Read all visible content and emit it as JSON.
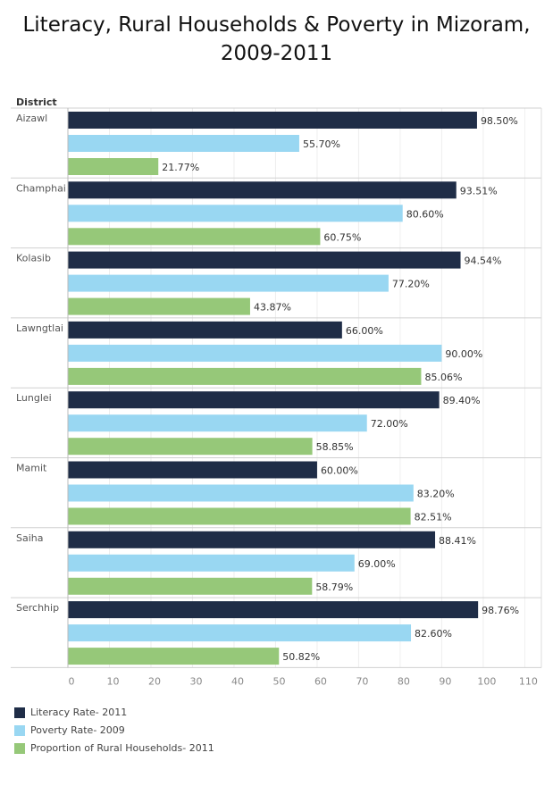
{
  "chart_data": {
    "type": "bar",
    "orientation": "horizontal",
    "title": "Literacy, Rural Households & Poverty in Mizoram, 2009-2011",
    "row_header": "District",
    "categories": [
      "Aizawl",
      "Champhai",
      "Kolasib",
      "Lawngtlai",
      "Lunglei",
      "Mamit",
      "Saiha",
      "Serchhip"
    ],
    "series": [
      {
        "name": "Literacy Rate- 2011",
        "color": "#1f2d47",
        "values": [
          98.5,
          93.51,
          94.54,
          66.0,
          89.4,
          60.0,
          88.41,
          98.76
        ],
        "labels": [
          "98.50%",
          "93.51%",
          "94.54%",
          "66.00%",
          "89.40%",
          "60.00%",
          "88.41%",
          "98.76%"
        ]
      },
      {
        "name": "Poverty Rate- 2009",
        "color": "#99d7f2",
        "values": [
          55.7,
          80.6,
          77.2,
          90.0,
          72.0,
          83.2,
          69.0,
          82.6
        ],
        "labels": [
          "55.70%",
          "80.60%",
          "77.20%",
          "90.00%",
          "72.00%",
          "83.20%",
          "69.00%",
          "82.60%"
        ]
      },
      {
        "name": "Proportion of Rural Households- 2011",
        "color": "#96c879",
        "values": [
          21.77,
          60.75,
          43.87,
          85.06,
          58.85,
          82.51,
          58.79,
          50.82
        ],
        "labels": [
          "21.77%",
          "60.75%",
          "43.87%",
          "85.06%",
          "58.85%",
          "82.51%",
          "58.79%",
          "50.82%"
        ]
      }
    ],
    "x_ticks": [
      "0",
      "10",
      "20",
      "30",
      "40",
      "50",
      "60",
      "70",
      "80",
      "90",
      "100",
      "110"
    ],
    "xlim": [
      0,
      114
    ],
    "grid": true,
    "legend_position": "bottom-left"
  }
}
